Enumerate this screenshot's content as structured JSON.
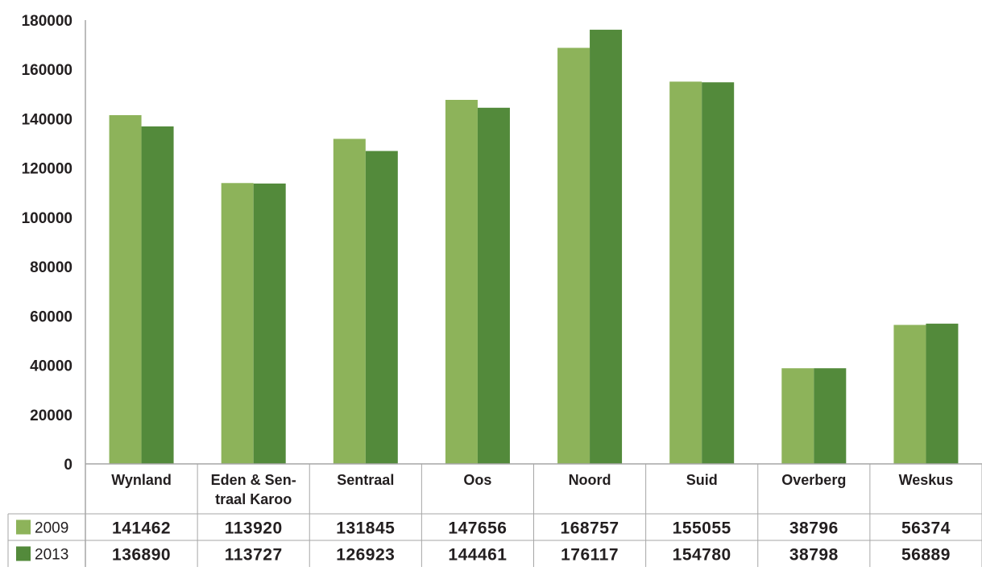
{
  "chart_data": {
    "type": "bar",
    "categories": [
      [
        "Wynland"
      ],
      [
        "Eden & Sen-",
        "traal Karoo"
      ],
      [
        "Sentraal"
      ],
      [
        "Oos"
      ],
      [
        "Noord"
      ],
      [
        "Suid"
      ],
      [
        "Overberg"
      ],
      [
        "Weskus"
      ]
    ],
    "series": [
      {
        "name": "2009",
        "color": "#8db35a",
        "values": [
          141462,
          113920,
          131845,
          147656,
          168757,
          155055,
          38796,
          56374
        ]
      },
      {
        "name": "2013",
        "color": "#538a3b",
        "values": [
          136890,
          113727,
          126923,
          144461,
          176117,
          154780,
          38798,
          56889
        ]
      }
    ],
    "y_ticks": [
      0,
      20000,
      40000,
      60000,
      80000,
      100000,
      120000,
      140000,
      160000,
      180000
    ],
    "ylim": [
      0,
      180000
    ],
    "title": "",
    "xlabel": "",
    "ylabel": "",
    "grid": false,
    "data_table": true
  }
}
